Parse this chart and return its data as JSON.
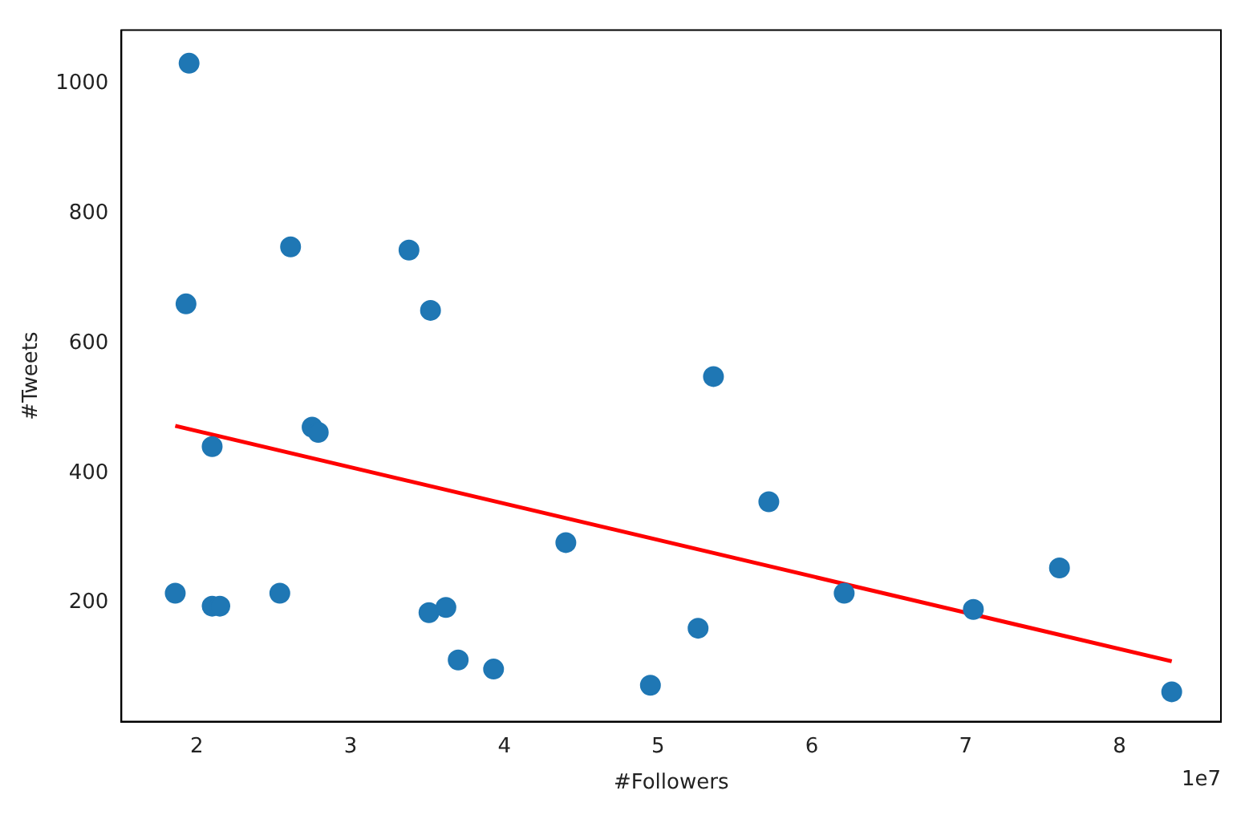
{
  "chart_data": {
    "type": "scatter",
    "xlabel": "#Followers",
    "ylabel": "#Tweets",
    "annotations": [
      "1e7"
    ],
    "xlim": [
      1.51,
      8.66
    ],
    "xticks": [
      2,
      3,
      4,
      5,
      6,
      7,
      8
    ],
    "ylim": [
      17,
      1083
    ],
    "yticks": [
      200,
      400,
      600,
      800,
      1000
    ],
    "grid": false,
    "legend": false,
    "series": [
      {
        "type": "scatter",
        "marker": "circle",
        "color": "#1f77b4",
        "x": [
          1.86,
          1.95,
          1.93,
          2.1,
          2.1,
          2.15,
          2.54,
          2.61,
          2.75,
          2.79,
          3.38,
          3.52,
          3.51,
          3.62,
          3.7,
          3.93,
          4.4,
          4.95,
          5.26,
          5.36,
          5.72,
          6.21,
          7.05,
          7.61,
          8.34
        ],
        "values": [
          215,
          1032,
          661,
          441,
          195,
          195,
          215,
          749,
          471,
          463,
          744,
          651,
          185,
          193,
          112,
          98,
          293,
          73,
          161,
          549,
          356,
          215,
          190,
          254,
          63
        ]
      },
      {
        "type": "line",
        "color": "#ff0000",
        "x": [
          1.86,
          8.34
        ],
        "values": [
          473,
          110
        ]
      }
    ]
  }
}
